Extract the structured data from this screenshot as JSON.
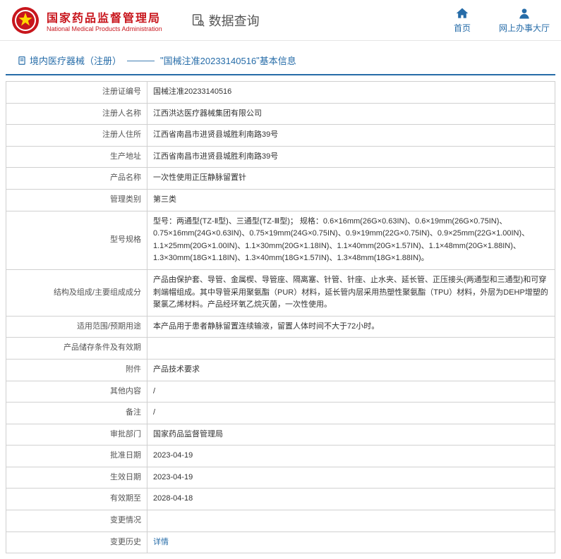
{
  "header": {
    "title_cn": "国家药品监督管理局",
    "title_en": "National Medical Products Administration",
    "search_title": "数据查询",
    "nav_home": "首页",
    "nav_hall": "网上办事大厅"
  },
  "breadcrumb": {
    "category": "境内医疗器械（注册）",
    "sep": "———",
    "quote_open": "\"",
    "reg_no": "国械注准20233140516",
    "quote_close": "\"",
    "suffix": "基本信息"
  },
  "rows": [
    {
      "label": "注册证编号",
      "value": "国械注准20233140516"
    },
    {
      "label": "注册人名称",
      "value": "江西洪达医疗器械集团有限公司"
    },
    {
      "label": "注册人住所",
      "value": "江西省南昌市进贤县城胜利南路39号"
    },
    {
      "label": "生产地址",
      "value": "江西省南昌市进贤县城胜利南路39号"
    },
    {
      "label": "产品名称",
      "value": "一次性使用正压静脉留置针"
    },
    {
      "label": "管理类别",
      "value": "第三类"
    },
    {
      "label": "型号规格",
      "value": "型号：两通型(TZ-Ⅱ型)、三通型(TZ-Ⅲ型)；\n规格：0.6×16mm(26G×0.63IN)、0.6×19mm(26G×0.75IN)、0.75×16mm(24G×0.63IN)、0.75×19mm(24G×0.75IN)、0.9×19mm(22G×0.75IN)、0.9×25mm(22G×1.00IN)、1.1×25mm(20G×1.00IN)、1.1×30mm(20G×1.18IN)、1.1×40mm(20G×1.57IN)、1.1×48mm(20G×1.88IN)、1.3×30mm(18G×1.18IN)、1.3×40mm(18G×1.57IN)、1.3×48mm(18G×1.88IN)。"
    },
    {
      "label": "结构及组成/主要组成成分",
      "value": "产品由保护套、导管、金属楔、导管座、隔离塞、针管、针座、止水夹、延长管、正压接头(两通型和三通型)和可穿刺端帽组成。其中导管采用聚氨酯（PUR）材料，延长管内层采用热塑性聚氨酯（TPU）材料，外层为DEHP增塑的聚氯乙烯材料。产品经环氧乙烷灭菌，一次性使用。"
    },
    {
      "label": "适用范围/预期用途",
      "value": "本产品用于患者静脉留置连续输液，留置人体时间不大于72小时。"
    },
    {
      "label": "产品储存条件及有效期",
      "value": ""
    },
    {
      "label": "附件",
      "value": "产品技术要求"
    },
    {
      "label": "其他内容",
      "value": "/"
    },
    {
      "label": "备注",
      "value": "/"
    },
    {
      "label": "审批部门",
      "value": "国家药品监督管理局"
    },
    {
      "label": "批准日期",
      "value": "2023-04-19"
    },
    {
      "label": "生效日期",
      "value": "2023-04-19"
    },
    {
      "label": "有效期至",
      "value": "2028-04-18"
    },
    {
      "label": "变更情况",
      "value": ""
    },
    {
      "label": "变更历史",
      "value": "详情",
      "is_link": true
    }
  ],
  "colors": {
    "brand_red": "#c8161d",
    "brand_blue": "#266ca8",
    "border": "#d0d0d0"
  }
}
